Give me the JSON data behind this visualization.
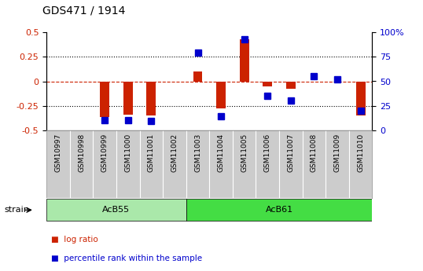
{
  "title": "GDS471 / 1914",
  "samples": [
    "GSM10997",
    "GSM10998",
    "GSM10999",
    "GSM11000",
    "GSM11001",
    "GSM11002",
    "GSM11003",
    "GSM11004",
    "GSM11005",
    "GSM11006",
    "GSM11007",
    "GSM11008",
    "GSM11009",
    "GSM11010"
  ],
  "log_ratio": [
    0.0,
    0.0,
    -0.37,
    -0.34,
    -0.35,
    0.0,
    0.1,
    -0.28,
    0.43,
    -0.05,
    -0.08,
    0.0,
    0.0,
    -0.35
  ],
  "percentile_rank": [
    null,
    null,
    10,
    10,
    9,
    null,
    79,
    14,
    93,
    35,
    30,
    55,
    52,
    20
  ],
  "groups": [
    {
      "label": "AcB55",
      "start": 0,
      "end": 5,
      "color": "#aae8aa"
    },
    {
      "label": "AcB61",
      "start": 6,
      "end": 13,
      "color": "#44dd44"
    }
  ],
  "group_row_label": "strain",
  "ylim_left": [
    -0.5,
    0.5
  ],
  "ylim_right": [
    0,
    100
  ],
  "yticks_left": [
    -0.5,
    -0.25,
    0.0,
    0.25,
    0.5
  ],
  "yticks_right": [
    0,
    25,
    50,
    75,
    100
  ],
  "ytick_labels_left": [
    "-0.5",
    "-0.25",
    "0",
    "0.25",
    "0.5"
  ],
  "ytick_labels_right": [
    "0",
    "25",
    "50",
    "75",
    "100%"
  ],
  "hlines_dotted": [
    0.25,
    -0.25
  ],
  "hline_dashed": 0.0,
  "bar_color_red": "#cc2200",
  "bar_color_blue": "#0000cc",
  "bar_width": 0.4,
  "blue_marker_size": 6,
  "sample_bg_color": "#cccccc",
  "title_fontsize": 10,
  "tick_fontsize": 8,
  "label_fontsize": 8
}
